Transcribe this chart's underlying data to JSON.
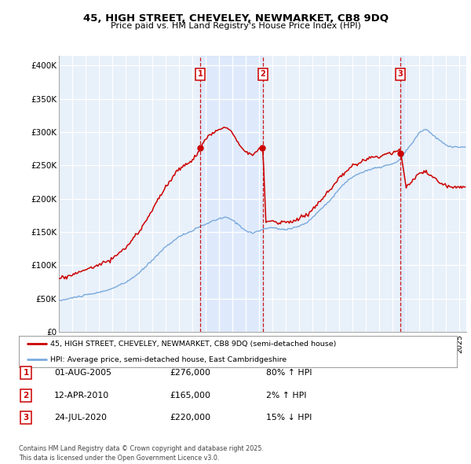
{
  "title_line1": "45, HIGH STREET, CHEVELEY, NEWMARKET, CB8 9DQ",
  "title_line2": "Price paid vs. HM Land Registry's House Price Index (HPI)",
  "ylabel_ticks": [
    "£0",
    "£50K",
    "£100K",
    "£150K",
    "£200K",
    "£250K",
    "£300K",
    "£350K",
    "£400K"
  ],
  "ytick_values": [
    0,
    50000,
    100000,
    150000,
    200000,
    250000,
    300000,
    350000,
    400000
  ],
  "ylim": [
    0,
    415000
  ],
  "xlim_start": 1995.0,
  "xlim_end": 2025.5,
  "hpi_color": "#7aaadd",
  "price_color": "#cc0000",
  "shade_color": "#ddeeff",
  "transaction_color": "#cc0000",
  "transactions": [
    {
      "date": 2005.58,
      "price": 276000,
      "label": "1"
    },
    {
      "date": 2010.27,
      "price": 165000,
      "label": "2"
    },
    {
      "date": 2020.55,
      "price": 220000,
      "label": "3"
    }
  ],
  "legend_line1": "45, HIGH STREET, CHEVELEY, NEWMARKET, CB8 9DQ (semi-detached house)",
  "legend_line2": "HPI: Average price, semi-detached house, East Cambridgeshire",
  "table_entries": [
    {
      "num": "1",
      "date": "01-AUG-2005",
      "price": "£276,000",
      "pct": "80% ↑ HPI"
    },
    {
      "num": "2",
      "date": "12-APR-2010",
      "price": "£165,000",
      "pct": "2% ↑ HPI"
    },
    {
      "num": "3",
      "date": "24-JUL-2020",
      "price": "£220,000",
      "pct": "15% ↓ HPI"
    }
  ],
  "footnote": "Contains HM Land Registry data © Crown copyright and database right 2025.\nThis data is licensed under the Open Government Licence v3.0.",
  "background_color": "#e8f0fa"
}
